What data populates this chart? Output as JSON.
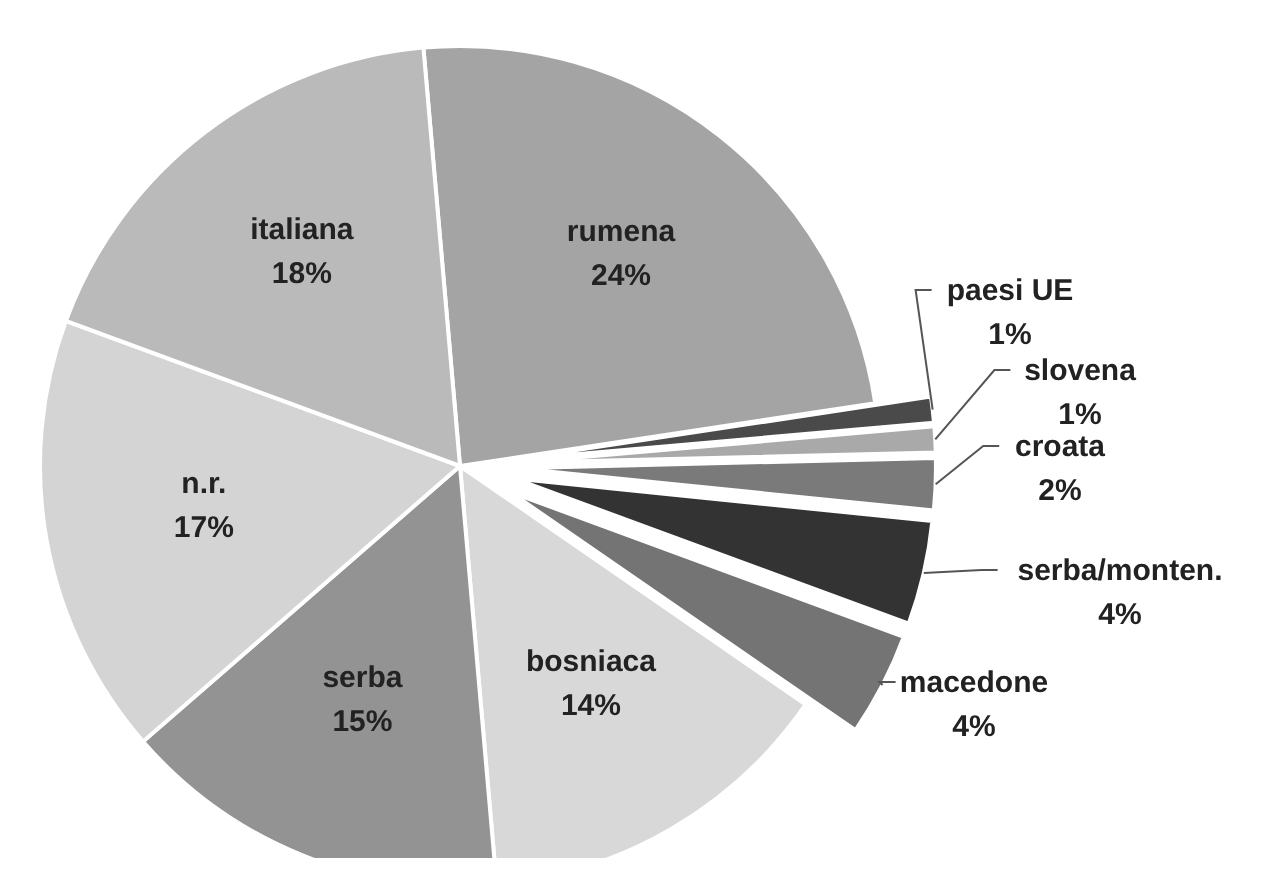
{
  "chart_data": {
    "type": "pie",
    "categories": [
      "rumena",
      "paesi UE",
      "slovena",
      "croata",
      "serba/monten.",
      "macedone",
      "bosniaca",
      "serba",
      "n.r.",
      "italiana"
    ],
    "values": [
      24,
      1,
      1,
      2,
      4,
      4,
      14,
      15,
      17,
      18
    ],
    "value_labels": [
      "24%",
      "1%",
      "1%",
      "2%",
      "4%",
      "4%",
      "14%",
      "15%",
      "17%",
      "18%"
    ],
    "colors": [
      "#a4a4a4",
      "#4a4a4a",
      "#a9a9a9",
      "#7a7a7a",
      "#333333",
      "#747474",
      "#d8d8d8",
      "#939393",
      "#d4d4d4",
      "#bababa"
    ]
  }
}
